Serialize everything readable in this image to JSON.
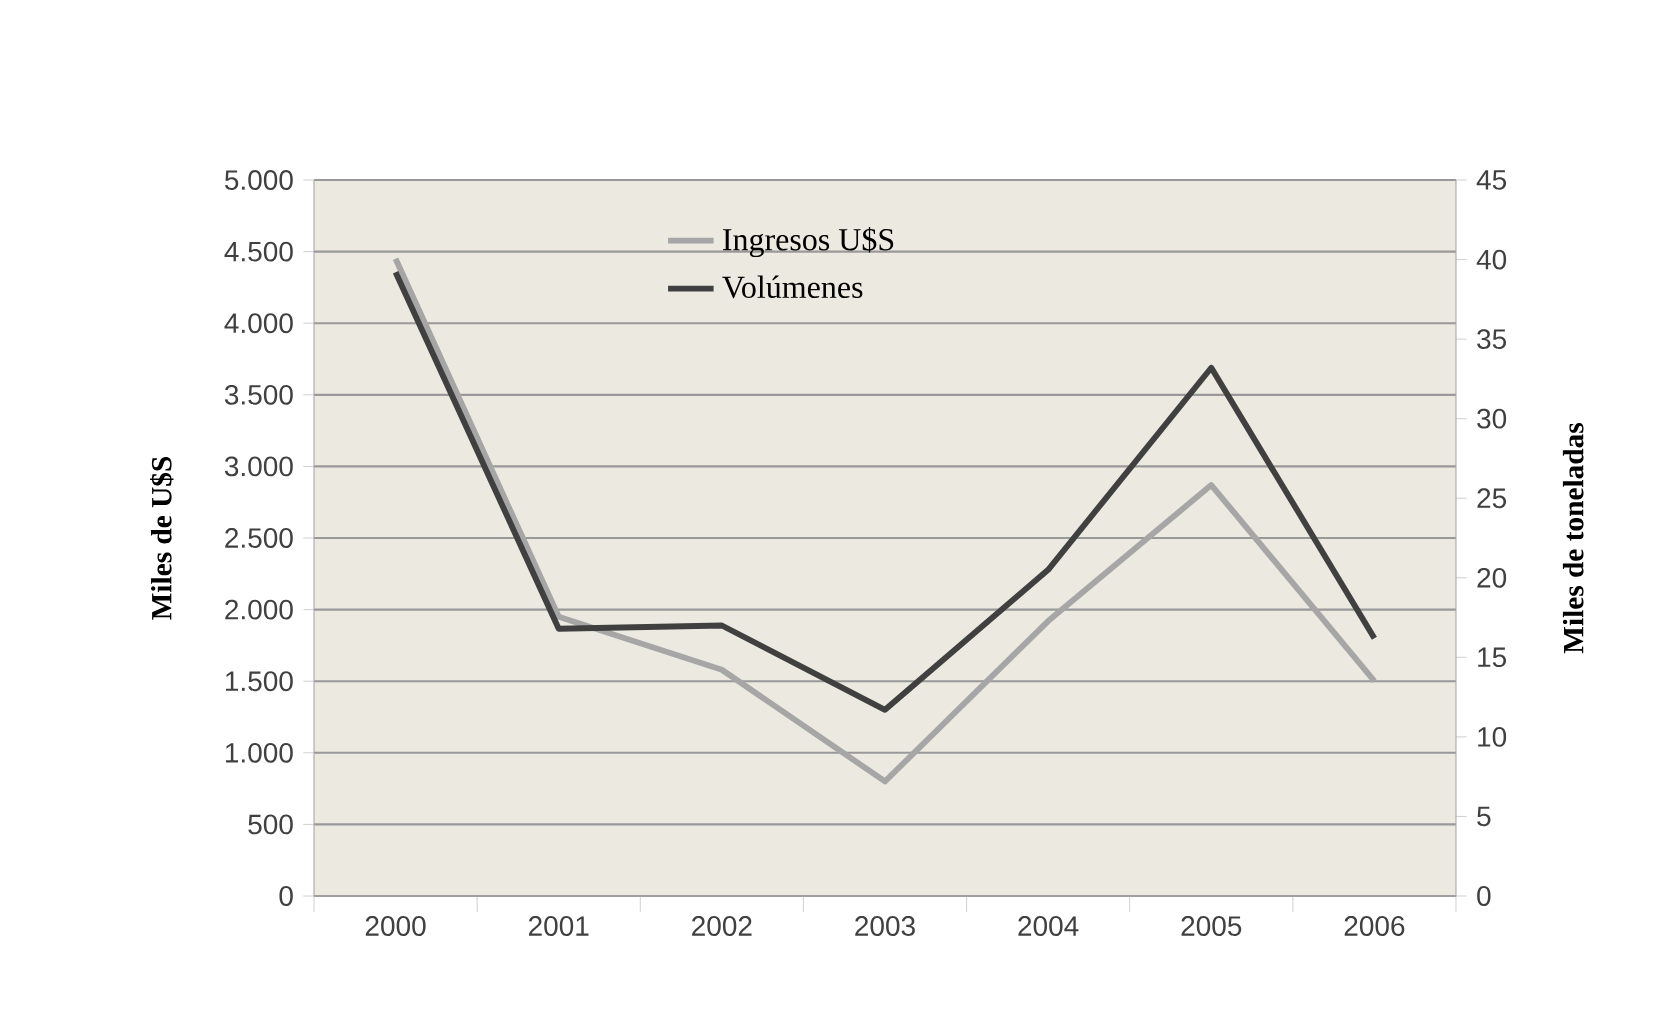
{
  "chart_data": {
    "type": "line",
    "categories": [
      "2000",
      "2001",
      "2002",
      "2003",
      "2004",
      "2005",
      "2006"
    ],
    "series": [
      {
        "name": "Ingresos U$S",
        "color": "#a6a6a6",
        "values": [
          4450,
          1950,
          1580,
          800,
          1920,
          2870,
          1500
        ]
      },
      {
        "name": "Volúmenes",
        "color": "#404040",
        "axis": "y2",
        "values": [
          39.2,
          16.8,
          17.0,
          11.7,
          20.5,
          33.2,
          16.2
        ]
      }
    ],
    "ylabel": "Miles de U$S",
    "y2label": "Miles de toneladas",
    "ylim": [
      0,
      5000
    ],
    "yticks": [
      0,
      500,
      {
        "value": 1000,
        "label": "1.000"
      },
      {
        "value": 1500,
        "label": "1.500"
      },
      {
        "value": 2000,
        "label": "2.000"
      },
      {
        "value": 2500,
        "label": "2.500"
      },
      {
        "value": 3000,
        "label": "3.000"
      },
      {
        "value": 3500,
        "label": "3.500"
      },
      {
        "value": 4000,
        "label": "4.000"
      },
      {
        "value": 4500,
        "label": "4.500"
      },
      {
        "value": 5000,
        "label": "5.000"
      }
    ],
    "y2lim": [
      0,
      45
    ],
    "y2ticks": [
      0,
      5,
      10,
      15,
      20,
      25,
      30,
      35,
      40,
      45
    ],
    "grid": "y",
    "legend": "top",
    "marker": "none",
    "line_style": "solid"
  }
}
